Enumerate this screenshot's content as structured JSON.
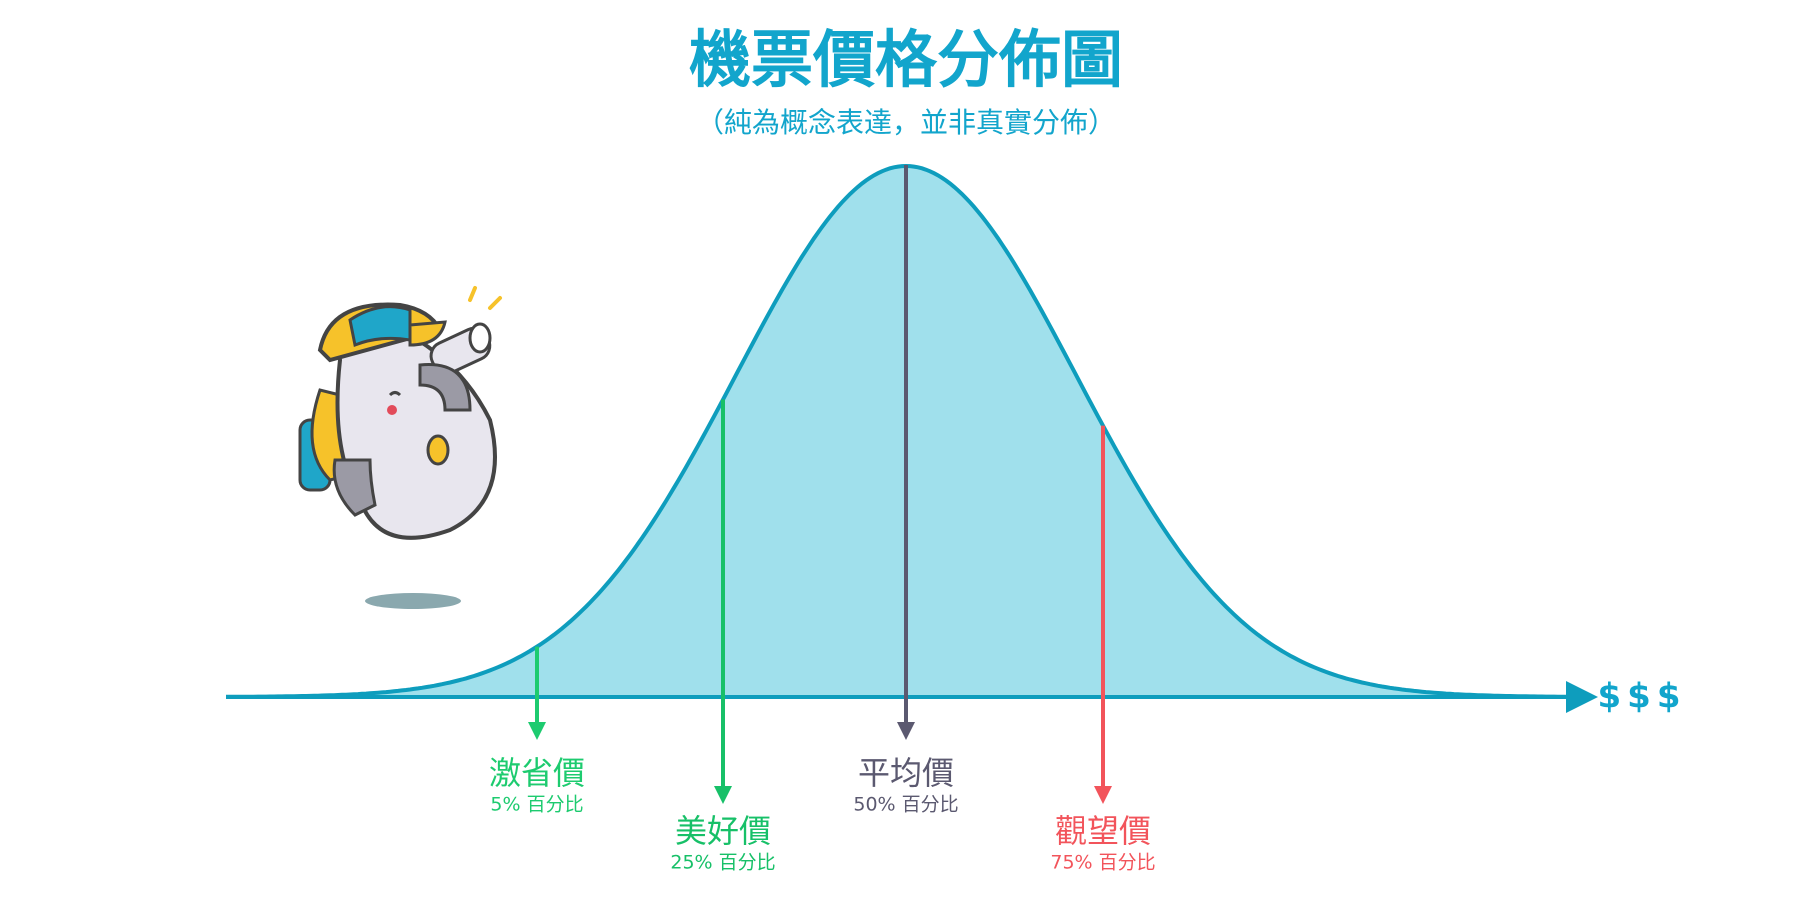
{
  "title": "機票價格分佈圖",
  "subtitle": "（純為概念表達，並非真實分佈）",
  "axis_label": "$$$",
  "markers": [
    {
      "label": "激省價",
      "percentile": "5% 百分比"
    },
    {
      "label": "美好價",
      "percentile": "25% 百分比"
    },
    {
      "label": "平均價",
      "percentile": "50% 百分比"
    },
    {
      "label": "觀望價",
      "percentile": "75% 百分比"
    }
  ]
}
